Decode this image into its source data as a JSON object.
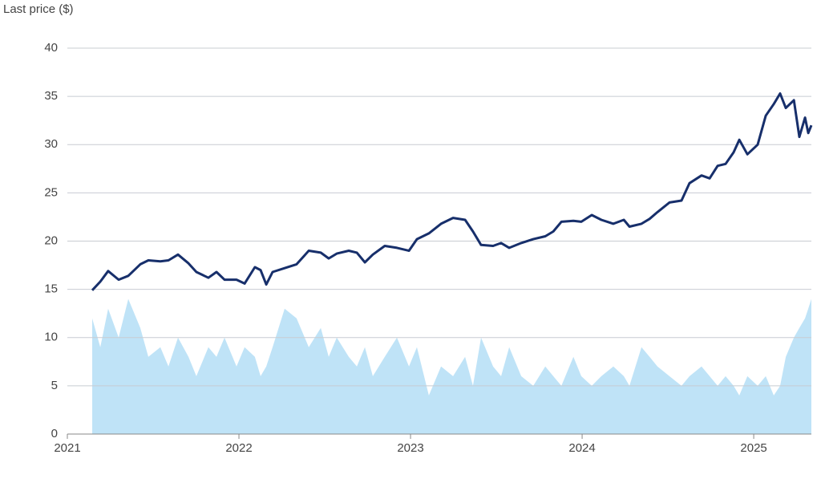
{
  "chart_data": {
    "type": "line",
    "y_label": "Last price ($)",
    "x": [
      2021.145,
      2021.192,
      2021.238,
      2021.299,
      2021.355,
      2021.425,
      2021.472,
      2021.542,
      2021.589,
      2021.645,
      2021.706,
      2021.752,
      2021.822,
      2021.869,
      2021.916,
      2021.986,
      2022.033,
      2022.093,
      2022.126,
      2022.159,
      2022.196,
      2022.266,
      2022.336,
      2022.407,
      2022.477,
      2022.523,
      2022.57,
      2022.64,
      2022.687,
      2022.734,
      2022.78,
      2022.85,
      2022.921,
      2022.991,
      2023.037,
      2023.107,
      2023.178,
      2023.248,
      2023.318,
      2023.364,
      2023.411,
      2023.481,
      2023.528,
      2023.575,
      2023.645,
      2023.715,
      2023.785,
      2023.832,
      2023.879,
      2023.949,
      2023.995,
      2024.056,
      2024.112,
      2024.182,
      2024.243,
      2024.276,
      2024.346,
      2024.393,
      2024.439,
      2024.509,
      2024.579,
      2024.626,
      2024.696,
      2024.743,
      2024.79,
      2024.836,
      2024.883,
      2024.916,
      2024.963,
      2025.023,
      2025.07,
      2025.117,
      2025.154,
      2025.187,
      2025.234,
      2025.266,
      2025.299,
      2025.318,
      2025.336
    ],
    "series": [
      {
        "type": "area",
        "color": "#bfe3f7",
        "values": [
          12,
          9,
          13,
          10,
          14,
          11,
          8,
          9,
          7,
          10,
          8,
          6,
          9,
          8,
          10,
          7,
          9,
          8,
          6,
          7,
          9,
          13,
          12,
          9,
          11,
          8,
          10,
          8,
          7,
          9,
          6,
          8,
          10,
          7,
          9,
          4,
          7,
          6,
          8,
          5,
          10,
          7,
          6,
          9,
          6,
          5,
          7,
          6,
          5,
          8,
          6,
          5,
          6,
          7,
          6,
          5,
          9,
          8,
          7,
          6,
          5,
          6,
          7,
          6,
          5,
          6,
          5,
          4,
          6,
          5,
          6,
          4,
          5,
          8,
          10,
          11,
          12,
          13,
          14
        ]
      },
      {
        "type": "line",
        "color": "#172f6b",
        "values": [
          14.9,
          15.8,
          16.9,
          16.0,
          16.4,
          17.6,
          18.0,
          17.9,
          18.0,
          18.6,
          17.7,
          16.8,
          16.2,
          16.8,
          16.0,
          16.0,
          15.6,
          17.3,
          17.0,
          15.5,
          16.8,
          17.2,
          17.6,
          19.0,
          18.8,
          18.2,
          18.7,
          19.0,
          18.8,
          17.8,
          18.6,
          19.5,
          19.3,
          19.0,
          20.2,
          20.8,
          21.8,
          22.4,
          22.2,
          21.0,
          19.6,
          19.5,
          19.8,
          19.3,
          19.8,
          20.2,
          20.5,
          21.0,
          22.0,
          22.1,
          22.0,
          22.7,
          22.2,
          21.8,
          22.2,
          21.5,
          21.8,
          22.3,
          23.0,
          24.0,
          24.2,
          26.0,
          26.8,
          26.5,
          27.8,
          28.0,
          29.2,
          30.5,
          29.0,
          30.0,
          33.0,
          34.2,
          35.3,
          33.8,
          34.6,
          30.8,
          32.8,
          31.2,
          32.0
        ]
      }
    ],
    "xlim": [
      2021,
      2025.336
    ],
    "xticks": [
      2021,
      2022,
      2023,
      2024,
      2025
    ],
    "ylim": [
      0,
      40
    ],
    "yticks": [
      0,
      5,
      10,
      15,
      20,
      25,
      30,
      35,
      40
    ],
    "grid": true
  }
}
